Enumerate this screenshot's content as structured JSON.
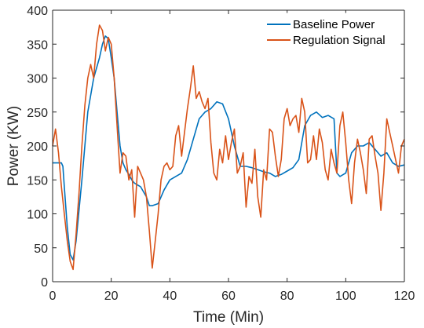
{
  "chart_data": {
    "type": "line",
    "title": "",
    "xlabel": "Time (Min)",
    "ylabel": "Power (KW)",
    "xlim": [
      0,
      120
    ],
    "ylim": [
      0,
      400
    ],
    "xticks": [
      0,
      20,
      40,
      60,
      80,
      100,
      120
    ],
    "yticks": [
      0,
      50,
      100,
      150,
      200,
      250,
      300,
      350,
      400
    ],
    "grid": false,
    "legend": "top-right",
    "series": [
      {
        "name": "Baseline Power",
        "color": "#0072BD",
        "x": [
          0,
          3,
          3.5,
          4,
          5,
          6,
          7,
          8,
          10,
          12,
          14,
          16,
          17,
          18,
          19,
          20,
          21,
          22,
          23,
          24,
          25,
          26,
          27,
          28,
          30,
          32,
          33,
          34,
          36,
          38,
          40,
          42,
          44,
          46,
          48,
          50,
          52,
          54,
          56,
          58,
          60,
          62,
          64,
          66,
          68,
          70,
          72,
          74,
          76,
          78,
          80,
          82,
          84,
          86,
          88,
          90,
          92,
          94,
          96,
          97,
          98,
          100,
          102,
          104,
          106,
          108,
          110,
          112,
          114,
          116,
          118,
          120
        ],
        "y": [
          175,
          175,
          170,
          140,
          80,
          40,
          32,
          60,
          150,
          250,
          300,
          330,
          350,
          362,
          358,
          330,
          300,
          250,
          200,
          175,
          165,
          158,
          150,
          145,
          140,
          125,
          112,
          112,
          115,
          135,
          150,
          155,
          160,
          180,
          210,
          240,
          250,
          255,
          265,
          262,
          240,
          200,
          170,
          170,
          168,
          165,
          162,
          160,
          155,
          158,
          163,
          168,
          180,
          230,
          245,
          250,
          242,
          245,
          240,
          160,
          155,
          160,
          190,
          200,
          200,
          205,
          195,
          185,
          190,
          175,
          170,
          172
        ]
      },
      {
        "name": "Regulation Signal",
        "color": "#D95319",
        "x": [
          0,
          1,
          2,
          3,
          4,
          5,
          6,
          7,
          8,
          9,
          10,
          11,
          12,
          13,
          14,
          15,
          16,
          17,
          18,
          19,
          20,
          21,
          22,
          23,
          24,
          25,
          26,
          27,
          28,
          29,
          30,
          31,
          32,
          33,
          34,
          35,
          36,
          37,
          38,
          39,
          40,
          41,
          42,
          43,
          44,
          45,
          46,
          47,
          48,
          49,
          50,
          51,
          52,
          53,
          54,
          55,
          56,
          57,
          58,
          59,
          60,
          61,
          62,
          63,
          64,
          65,
          66,
          67,
          68,
          69,
          70,
          71,
          72,
          73,
          74,
          75,
          76,
          77,
          78,
          79,
          80,
          81,
          82,
          83,
          84,
          85,
          86,
          87,
          88,
          89,
          90,
          91,
          92,
          93,
          94,
          95,
          96,
          97,
          98,
          99,
          100,
          101,
          102,
          103,
          104,
          105,
          106,
          107,
          108,
          109,
          110,
          111,
          112,
          113,
          114,
          115,
          116,
          117,
          118,
          119,
          120
        ],
        "y": [
          200,
          225,
          190,
          140,
          100,
          60,
          30,
          18,
          70,
          130,
          200,
          260,
          300,
          320,
          300,
          350,
          378,
          370,
          340,
          360,
          350,
          300,
          230,
          160,
          190,
          185,
          150,
          165,
          95,
          170,
          160,
          150,
          125,
          75,
          20,
          60,
          100,
          150,
          170,
          175,
          165,
          170,
          215,
          230,
          185,
          220,
          255,
          285,
          318,
          270,
          280,
          265,
          255,
          270,
          205,
          160,
          150,
          195,
          175,
          215,
          180,
          205,
          225,
          160,
          170,
          190,
          110,
          155,
          145,
          195,
          125,
          95,
          165,
          150,
          225,
          220,
          185,
          155,
          180,
          240,
          255,
          230,
          240,
          245,
          220,
          270,
          250,
          175,
          180,
          215,
          180,
          225,
          205,
          165,
          150,
          195,
          175,
          160,
          230,
          250,
          205,
          150,
          115,
          175,
          210,
          190,
          165,
          130,
          210,
          215,
          185,
          160,
          105,
          160,
          240,
          220,
          200,
          180,
          160,
          200,
          210
        ]
      }
    ]
  }
}
